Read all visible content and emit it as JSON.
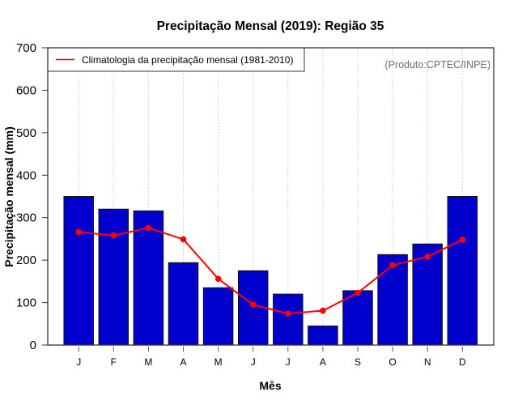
{
  "chart_data": {
    "type": "bar",
    "title": "Precipitação Mensal (2019): Região 35",
    "xlabel": "Mês",
    "ylabel": "Precipitação mensal (mm)",
    "ylim": [
      0,
      700
    ],
    "yticks": [
      0,
      100,
      200,
      300,
      400,
      500,
      600,
      700
    ],
    "categories": [
      "J",
      "F",
      "M",
      "A",
      "M",
      "J",
      "J",
      "A",
      "S",
      "O",
      "N",
      "D"
    ],
    "grid": "vertical dotted at each month",
    "series": [
      {
        "name": "Precipitação mensal (2019)",
        "type": "bar",
        "color": "#0000cc",
        "values": [
          350,
          320,
          316,
          194,
          135,
          175,
          120,
          45,
          128,
          213,
          238,
          350
        ]
      },
      {
        "name": "Climatologia da precipitação mensal (1981-2010)",
        "type": "line",
        "color": "#ff0000",
        "values": [
          266,
          258,
          276,
          249,
          156,
          95,
          74,
          81,
          123,
          188,
          208,
          248
        ]
      }
    ],
    "legend": {
      "position": "top-left",
      "entries": [
        "Climatologia da precipitação mensal (1981-2010)"
      ]
    },
    "annotation": "(Produto:CPTEC/INPE)"
  }
}
